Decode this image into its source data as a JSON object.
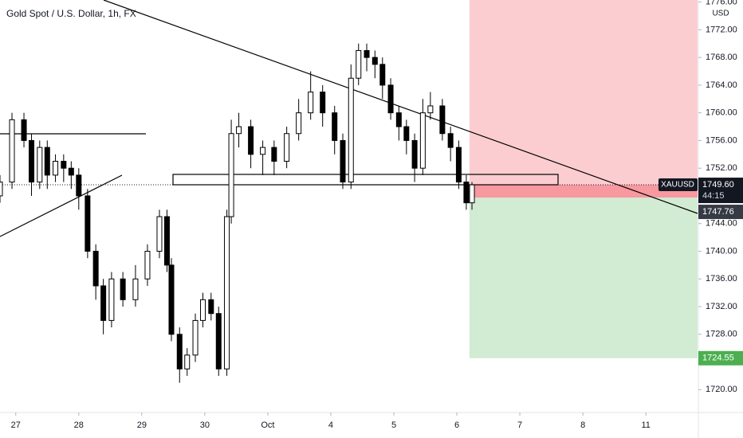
{
  "chart_data": {
    "type": "candlestick",
    "title": "Gold Spot / U.S. Dollar, 1h, FX",
    "symbol": "XAUUSD",
    "currency": "USD",
    "x": [
      -0.25,
      -0.06,
      0.13,
      0.25,
      0.38,
      0.5,
      0.63,
      0.76,
      0.88,
      1.0,
      1.14,
      1.27,
      1.39,
      1.52,
      1.7,
      1.9,
      2.09,
      2.28,
      2.4,
      2.47,
      2.6,
      2.72,
      2.85,
      2.97,
      3.1,
      3.22,
      3.35,
      3.42,
      3.54,
      3.73,
      3.92,
      4.1,
      4.3,
      4.49,
      4.68,
      4.87,
      5.06,
      5.19,
      5.32,
      5.44,
      5.57,
      5.7,
      5.82,
      5.95,
      6.08,
      6.2,
      6.33,
      6.46,
      6.58,
      6.77,
      6.9,
      7.03,
      7.15,
      7.24
    ],
    "open": [
      1748,
      1750,
      1759,
      1756,
      1750,
      1755,
      1751,
      1753,
      1752,
      1751,
      1748,
      1740,
      1735,
      1730,
      1736,
      1733,
      1736,
      1740,
      1745,
      1738,
      1728,
      1723,
      1725,
      1730,
      1733,
      1731,
      1723,
      1745,
      1757,
      1758,
      1754,
      1755,
      1753,
      1757,
      1760,
      1763,
      1760,
      1756,
      1750,
      1765,
      1769,
      1768,
      1767,
      1764,
      1760,
      1758,
      1756,
      1752,
      1760,
      1761,
      1757,
      1755,
      1750,
      1747
    ],
    "high": [
      1751,
      1760,
      1760,
      1757,
      1756,
      1756,
      1754,
      1754,
      1753,
      1752,
      1749,
      1741,
      1736,
      1737,
      1737,
      1738,
      1741,
      1746,
      1746,
      1739,
      1729,
      1726,
      1731,
      1734,
      1734,
      1732,
      1746,
      1759,
      1760,
      1759,
      1756,
      1756,
      1758,
      1762,
      1766,
      1764,
      1761,
      1757,
      1767,
      1770,
      1770,
      1769,
      1768,
      1765,
      1761,
      1759,
      1757,
      1762,
      1763,
      1762,
      1758,
      1756,
      1751,
      1750
    ],
    "low": [
      1747,
      1749,
      1755,
      1748,
      1749,
      1749,
      1750,
      1750,
      1749,
      1746,
      1739,
      1733,
      1728,
      1729,
      1732,
      1732,
      1735,
      1739,
      1737,
      1727,
      1721,
      1722,
      1724,
      1729,
      1730,
      1722,
      1722,
      1744,
      1755,
      1752,
      1751,
      1751,
      1752,
      1756,
      1759,
      1758,
      1754,
      1749,
      1749,
      1764,
      1766,
      1765,
      1762,
      1759,
      1756,
      1754,
      1750,
      1751,
      1759,
      1756,
      1753,
      1749,
      1746,
      1746
    ],
    "close": [
      1750,
      1759,
      1756,
      1750,
      1755,
      1751,
      1753,
      1752,
      1751,
      1748,
      1740,
      1735,
      1730,
      1736,
      1733,
      1736,
      1740,
      1745,
      1738,
      1728,
      1723,
      1725,
      1730,
      1733,
      1731,
      1723,
      1745,
      1757,
      1758,
      1754,
      1755,
      1753,
      1757,
      1760,
      1763,
      1760,
      1756,
      1750,
      1765,
      1769,
      1768,
      1767,
      1764,
      1760,
      1758,
      1756,
      1752,
      1760,
      1761,
      1757,
      1755,
      1750,
      1747,
      1749.6
    ],
    "up_color": "#ffffff",
    "down_color": "#000000",
    "xlim": [
      -0.25,
      10.82
    ],
    "xticks": [
      {
        "value": 0,
        "label": "27"
      },
      {
        "value": 1,
        "label": "28"
      },
      {
        "value": 2,
        "label": "29"
      },
      {
        "value": 3,
        "label": "30"
      },
      {
        "value": 4,
        "label": "Oct"
      },
      {
        "value": 5,
        "label": "4"
      },
      {
        "value": 6,
        "label": "5"
      },
      {
        "value": 7,
        "label": "6"
      },
      {
        "value": 8,
        "label": "7"
      },
      {
        "value": 9,
        "label": "8"
      },
      {
        "value": 10,
        "label": "11"
      }
    ],
    "ylim": [
      1716.7,
      1776.3
    ],
    "yticks": [
      {
        "value": 1776,
        "label": "1776.00"
      },
      {
        "value": 1772,
        "label": "1772.00"
      },
      {
        "value": 1768,
        "label": "1768.00"
      },
      {
        "value": 1764,
        "label": "1764.00"
      },
      {
        "value": 1760,
        "label": "1760.00"
      },
      {
        "value": 1756,
        "label": "1756.00"
      },
      {
        "value": 1752,
        "label": "1752.00"
      },
      {
        "value": 1744,
        "label": "1744.00"
      },
      {
        "value": 1740,
        "label": "1740.00"
      },
      {
        "value": 1736,
        "label": "1736.00"
      },
      {
        "value": 1732,
        "label": "1732.00"
      },
      {
        "value": 1728,
        "label": "1728.00"
      },
      {
        "value": 1724,
        "label": "1724.00"
      },
      {
        "value": 1720,
        "label": "1720.00"
      }
    ],
    "last_price": {
      "value": 1749.6,
      "label": "1749.60"
    },
    "countdown": "44:15",
    "entry": 1747.76,
    "target": 1724.55,
    "position_start": 7.2
  }
}
